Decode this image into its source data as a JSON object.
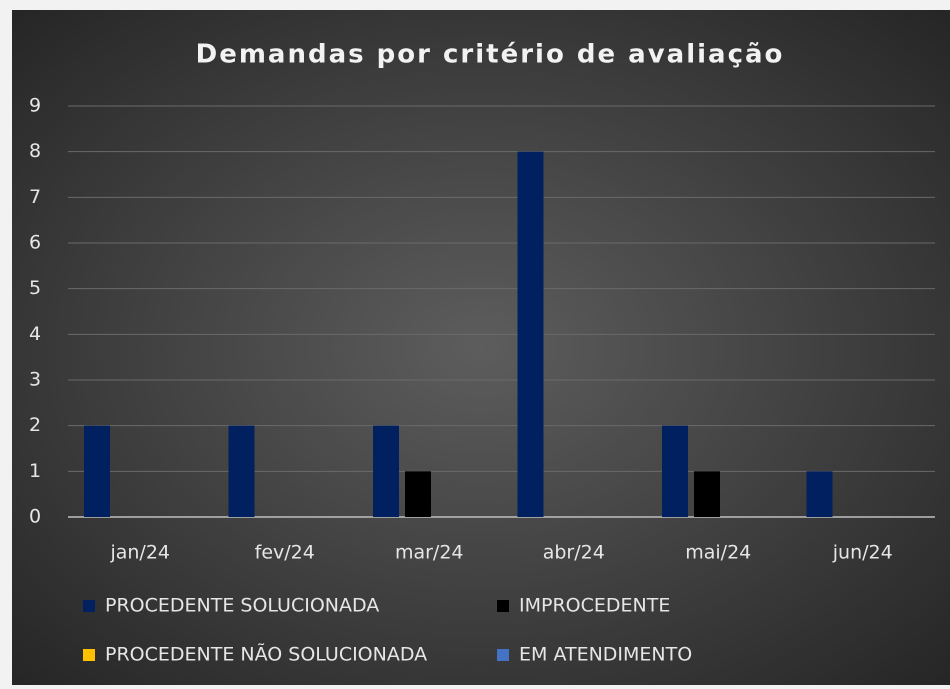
{
  "chart_data": {
    "type": "bar",
    "title": "Demandas por critério de avaliação",
    "categories": [
      "jan/24",
      "fev/24",
      "mar/24",
      "abr/24",
      "mai/24",
      "jun/24"
    ],
    "series": [
      {
        "name": "PROCEDENTE SOLUCIONADA",
        "color": "#002060",
        "values": [
          2,
          2,
          2,
          8,
          2,
          1
        ]
      },
      {
        "name": "IMPROCEDENTE",
        "color": "#000000",
        "values": [
          0,
          0,
          1,
          0,
          1,
          0
        ]
      },
      {
        "name": "PROCEDENTE NÃO SOLUCIONADA",
        "color": "#ffc000",
        "values": [
          0,
          0,
          0,
          0,
          0,
          0
        ]
      },
      {
        "name": "EM ATENDIMENTO",
        "color": "#4472c4",
        "values": [
          0,
          0,
          0,
          0,
          0,
          0
        ]
      }
    ],
    "ylim": [
      0,
      9
    ],
    "yticks": [
      0,
      1,
      2,
      3,
      4,
      5,
      6,
      7,
      8,
      9
    ],
    "grid": true,
    "legend": "bottom"
  }
}
